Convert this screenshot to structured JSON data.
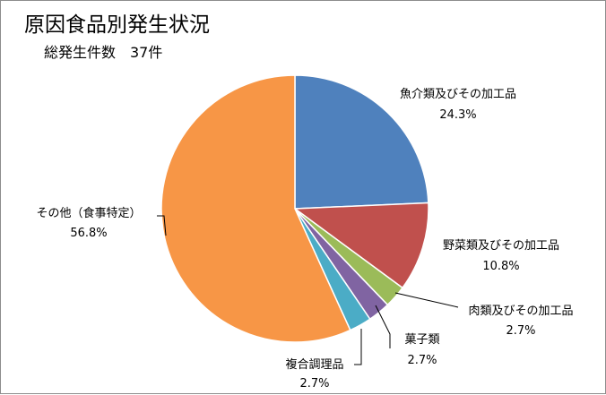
{
  "chart_data": {
    "type": "pie",
    "title": "原因食品別発生状況",
    "subtitle": "総発生件数　37件",
    "slices": [
      {
        "label": "魚介類及びその加工品",
        "value_text": "24.3%",
        "value": 24.3,
        "color": "#4f81bd"
      },
      {
        "label": "野菜類及びその加工品",
        "value_text": "10.8%",
        "value": 10.8,
        "color": "#c0504d"
      },
      {
        "label": "肉類及びその加工品",
        "value_text": "2.7%",
        "value": 2.7,
        "color": "#9bbb59"
      },
      {
        "label": "菓子類",
        "value_text": "2.7%",
        "value": 2.7,
        "color": "#8064a2"
      },
      {
        "label": "複合調理品",
        "value_text": "2.7%",
        "value": 2.7,
        "color": "#4bacc6"
      },
      {
        "label": "その他（食事特定）",
        "value_text": "56.8%",
        "value": 56.8,
        "color": "#f79646"
      }
    ]
  }
}
